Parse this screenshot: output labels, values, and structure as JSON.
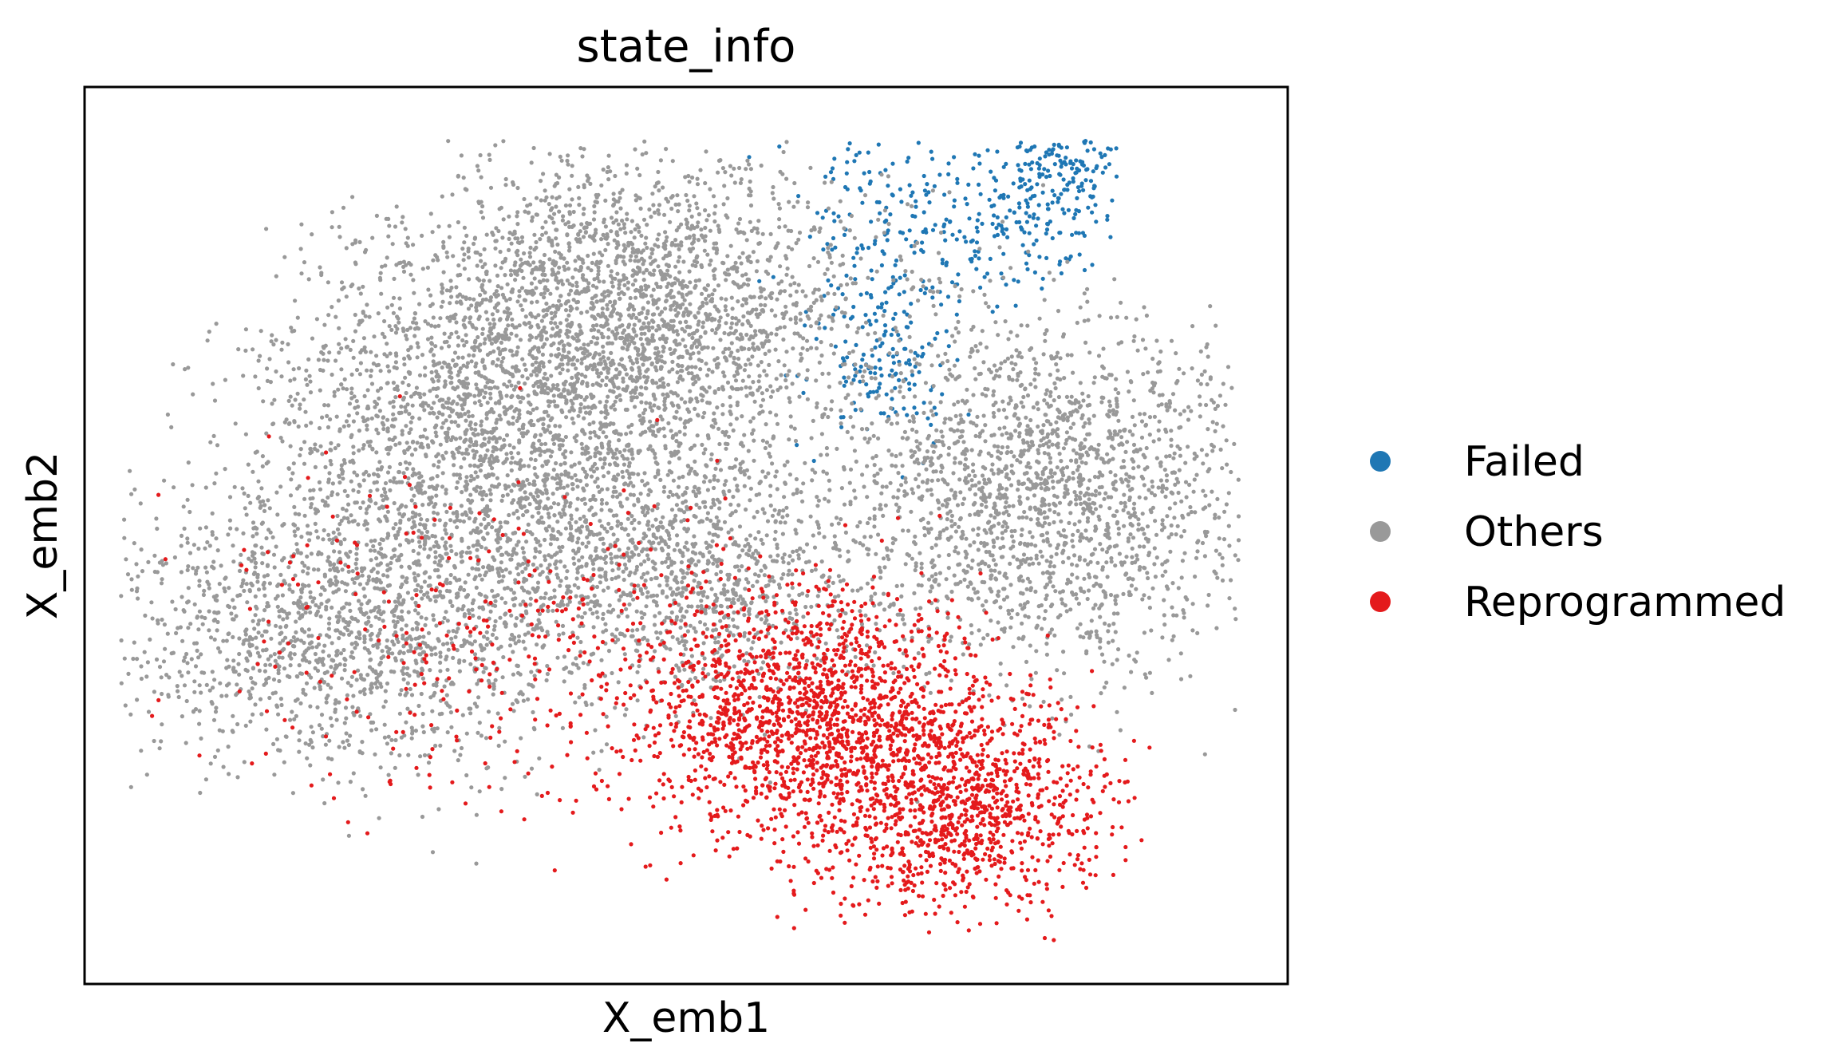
{
  "chart_data": {
    "type": "scatter",
    "title": "state_info",
    "xlabel": "X_emb1",
    "ylabel": "X_emb2",
    "xlim": [
      0,
      100
    ],
    "ylim": [
      0,
      100
    ],
    "grid": false,
    "axis_ticks": false,
    "legend": {
      "placement": "right-outside"
    },
    "series": [
      {
        "name": "Failed",
        "color": "#1f77b4",
        "count": 600,
        "clusters": [
          {
            "center": [
              67,
              85
            ],
            "spread": [
              4.5,
              8
            ],
            "weight": 0.35
          },
          {
            "center": [
              77,
              84
            ],
            "spread": [
              4,
              4
            ],
            "weight": 0.2
          },
          {
            "center": [
              81,
              91
            ],
            "spread": [
              3,
              3
            ],
            "weight": 0.25
          },
          {
            "center": [
              66,
              68
            ],
            "spread": [
              3,
              4
            ],
            "weight": 0.2
          }
        ]
      },
      {
        "name": "Others",
        "color": "#999999",
        "count": 9000,
        "clusters": [
          {
            "center": [
              36,
              62
            ],
            "spread": [
              11,
              11
            ],
            "weight": 0.3
          },
          {
            "center": [
              22,
              40
            ],
            "spread": [
              10,
              8
            ],
            "weight": 0.18
          },
          {
            "center": [
              47,
              76
            ],
            "spread": [
              9,
              9
            ],
            "weight": 0.2
          },
          {
            "center": [
              80,
              55
            ],
            "spread": [
              9,
              10
            ],
            "weight": 0.22
          },
          {
            "center": [
              50,
              45
            ],
            "spread": [
              8,
              6
            ],
            "weight": 0.1
          }
        ]
      },
      {
        "name": "Reprogrammed",
        "color": "#e41a1c",
        "count": 3000,
        "clusters": [
          {
            "center": [
              60,
              30
            ],
            "spread": [
              7,
              7
            ],
            "weight": 0.55
          },
          {
            "center": [
              73,
              20
            ],
            "spread": [
              6,
              6
            ],
            "weight": 0.35
          },
          {
            "center": [
              35,
              38
            ],
            "spread": [
              13,
              10
            ],
            "weight": 0.1
          }
        ]
      }
    ]
  }
}
